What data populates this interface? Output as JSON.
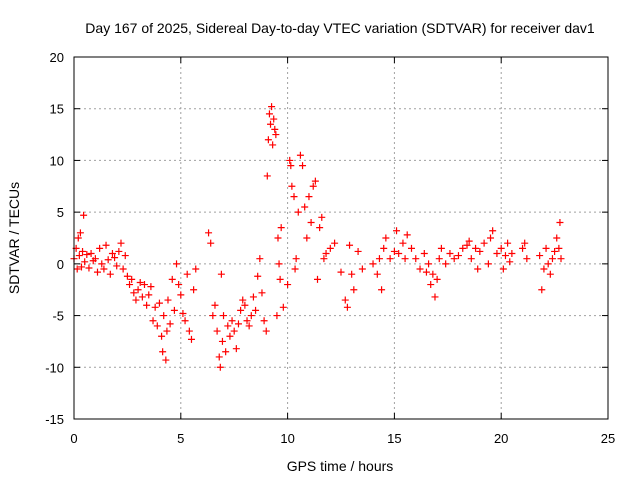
{
  "chart_data": {
    "type": "scatter",
    "title": "Day 167 of 2025, Sidereal Day-to-day VTEC variation (SDTVAR) for receiver dav1",
    "xlabel": "GPS time / hours",
    "ylabel": "SDTVAR / TECUs",
    "xlim": [
      0,
      25
    ],
    "ylim": [
      -15,
      20
    ],
    "xticks": [
      0,
      5,
      10,
      15,
      20,
      25
    ],
    "yticks": [
      -15,
      -10,
      -5,
      0,
      5,
      10,
      15,
      20
    ],
    "grid": true,
    "marker": "+",
    "marker_color": "#ff0000",
    "series": [
      {
        "name": "SDTVAR",
        "points": [
          [
            0.0,
            0.5
          ],
          [
            0.1,
            1.5
          ],
          [
            0.15,
            -0.5
          ],
          [
            0.2,
            2.5
          ],
          [
            0.25,
            0.8
          ],
          [
            0.3,
            3.0
          ],
          [
            0.35,
            -0.3
          ],
          [
            0.4,
            1.2
          ],
          [
            0.45,
            4.7
          ],
          [
            0.5,
            0.2
          ],
          [
            0.6,
            0.9
          ],
          [
            0.7,
            -0.4
          ],
          [
            0.8,
            1.0
          ],
          [
            0.9,
            0.3
          ],
          [
            1.0,
            0.5
          ],
          [
            1.1,
            -0.8
          ],
          [
            1.2,
            1.5
          ],
          [
            1.3,
            0.0
          ],
          [
            1.4,
            -0.5
          ],
          [
            1.5,
            1.8
          ],
          [
            1.6,
            0.4
          ],
          [
            1.7,
            -1.0
          ],
          [
            1.8,
            1.0
          ],
          [
            1.9,
            0.6
          ],
          [
            2.0,
            -0.2
          ],
          [
            2.1,
            1.2
          ],
          [
            2.2,
            2.0
          ],
          [
            2.3,
            -0.5
          ],
          [
            2.4,
            0.8
          ],
          [
            2.5,
            -1.2
          ],
          [
            2.6,
            -2.0
          ],
          [
            2.7,
            -1.5
          ],
          [
            2.8,
            -2.8
          ],
          [
            2.9,
            -3.5
          ],
          [
            3.0,
            -2.5
          ],
          [
            3.1,
            -1.8
          ],
          [
            3.2,
            -3.2
          ],
          [
            3.3,
            -2.0
          ],
          [
            3.4,
            -4.0
          ],
          [
            3.5,
            -3.0
          ],
          [
            3.6,
            -2.2
          ],
          [
            3.7,
            -5.5
          ],
          [
            3.8,
            -4.2
          ],
          [
            3.9,
            -6.0
          ],
          [
            4.0,
            -3.8
          ],
          [
            4.1,
            -7.0
          ],
          [
            4.15,
            -8.5
          ],
          [
            4.2,
            -5.0
          ],
          [
            4.3,
            -9.3
          ],
          [
            4.35,
            -6.5
          ],
          [
            4.4,
            -3.5
          ],
          [
            4.5,
            -5.8
          ],
          [
            4.6,
            -1.5
          ],
          [
            4.7,
            -4.5
          ],
          [
            4.8,
            0.0
          ],
          [
            4.9,
            -2.0
          ],
          [
            5.0,
            -3.0
          ],
          [
            5.1,
            -4.8
          ],
          [
            5.2,
            -5.5
          ],
          [
            5.3,
            -1.0
          ],
          [
            5.4,
            -6.5
          ],
          [
            5.5,
            -7.3
          ],
          [
            5.6,
            -2.5
          ],
          [
            5.7,
            -0.5
          ],
          [
            6.3,
            3.0
          ],
          [
            6.4,
            2.0
          ],
          [
            6.5,
            -5.0
          ],
          [
            6.6,
            -4.0
          ],
          [
            6.7,
            -6.5
          ],
          [
            6.8,
            -9.0
          ],
          [
            6.85,
            -10.0
          ],
          [
            6.9,
            -1.0
          ],
          [
            6.95,
            -7.5
          ],
          [
            7.0,
            -5.0
          ],
          [
            7.1,
            -8.5
          ],
          [
            7.2,
            -6.0
          ],
          [
            7.3,
            -7.0
          ],
          [
            7.4,
            -5.5
          ],
          [
            7.5,
            -6.5
          ],
          [
            7.6,
            -8.2
          ],
          [
            7.7,
            -5.8
          ],
          [
            7.8,
            -4.5
          ],
          [
            7.9,
            -3.5
          ],
          [
            8.0,
            -4.0
          ],
          [
            8.1,
            -5.5
          ],
          [
            8.2,
            -6.0
          ],
          [
            8.3,
            -5.0
          ],
          [
            8.4,
            -3.2
          ],
          [
            8.5,
            -4.5
          ],
          [
            8.6,
            -1.2
          ],
          [
            8.7,
            0.5
          ],
          [
            8.8,
            -2.8
          ],
          [
            8.9,
            -5.5
          ],
          [
            9.0,
            -6.5
          ],
          [
            9.05,
            8.5
          ],
          [
            9.1,
            12.0
          ],
          [
            9.15,
            14.5
          ],
          [
            9.2,
            13.5
          ],
          [
            9.25,
            15.2
          ],
          [
            9.3,
            11.5
          ],
          [
            9.35,
            14.0
          ],
          [
            9.4,
            13.0
          ],
          [
            9.45,
            12.5
          ],
          [
            9.5,
            -5.0
          ],
          [
            9.55,
            2.5
          ],
          [
            9.6,
            0.0
          ],
          [
            9.65,
            -1.5
          ],
          [
            9.7,
            3.5
          ],
          [
            9.8,
            -4.2
          ],
          [
            10.0,
            -2.0
          ],
          [
            10.1,
            10.0
          ],
          [
            10.15,
            9.5
          ],
          [
            10.2,
            7.5
          ],
          [
            10.3,
            6.5
          ],
          [
            10.35,
            -0.5
          ],
          [
            10.4,
            0.5
          ],
          [
            10.5,
            5.0
          ],
          [
            10.6,
            10.5
          ],
          [
            10.7,
            9.5
          ],
          [
            10.8,
            5.5
          ],
          [
            10.9,
            2.5
          ],
          [
            11.0,
            6.5
          ],
          [
            11.1,
            4.0
          ],
          [
            11.2,
            7.5
          ],
          [
            11.3,
            8.0
          ],
          [
            11.4,
            -1.5
          ],
          [
            11.5,
            3.5
          ],
          [
            11.6,
            4.5
          ],
          [
            11.7,
            0.5
          ],
          [
            11.8,
            1.0
          ],
          [
            12.0,
            1.5
          ],
          [
            12.2,
            2.0
          ],
          [
            12.5,
            -0.8
          ],
          [
            12.7,
            -3.5
          ],
          [
            12.8,
            -4.2
          ],
          [
            12.9,
            1.8
          ],
          [
            13.0,
            -1.0
          ],
          [
            13.1,
            -2.5
          ],
          [
            13.3,
            1.2
          ],
          [
            13.5,
            -0.5
          ],
          [
            14.0,
            0.0
          ],
          [
            14.2,
            -1.0
          ],
          [
            14.3,
            0.5
          ],
          [
            14.4,
            -2.5
          ],
          [
            14.5,
            1.5
          ],
          [
            14.6,
            2.5
          ],
          [
            14.8,
            0.5
          ],
          [
            15.0,
            1.2
          ],
          [
            15.1,
            3.2
          ],
          [
            15.2,
            1.0
          ],
          [
            15.4,
            2.0
          ],
          [
            15.5,
            0.5
          ],
          [
            15.6,
            2.8
          ],
          [
            15.8,
            1.5
          ],
          [
            16.0,
            0.5
          ],
          [
            16.2,
            -0.5
          ],
          [
            16.4,
            1.0
          ],
          [
            16.5,
            -0.8
          ],
          [
            16.6,
            0.0
          ],
          [
            16.7,
            -2.0
          ],
          [
            16.8,
            -1.0
          ],
          [
            16.9,
            -3.2
          ],
          [
            17.0,
            -1.5
          ],
          [
            17.1,
            0.5
          ],
          [
            17.2,
            1.5
          ],
          [
            17.4,
            0.0
          ],
          [
            17.6,
            1.0
          ],
          [
            17.8,
            0.5
          ],
          [
            18.0,
            0.8
          ],
          [
            18.2,
            1.5
          ],
          [
            18.4,
            1.8
          ],
          [
            18.5,
            2.2
          ],
          [
            18.6,
            0.5
          ],
          [
            18.8,
            1.5
          ],
          [
            18.9,
            -0.5
          ],
          [
            19.0,
            1.2
          ],
          [
            19.2,
            2.0
          ],
          [
            19.4,
            0.0
          ],
          [
            19.5,
            2.5
          ],
          [
            19.6,
            3.2
          ],
          [
            19.8,
            1.0
          ],
          [
            20.0,
            1.5
          ],
          [
            20.1,
            -0.5
          ],
          [
            20.2,
            0.8
          ],
          [
            20.3,
            2.0
          ],
          [
            20.4,
            0.2
          ],
          [
            20.5,
            1.0
          ],
          [
            21.0,
            1.5
          ],
          [
            21.1,
            2.0
          ],
          [
            21.2,
            0.5
          ],
          [
            21.8,
            0.8
          ],
          [
            21.9,
            -2.5
          ],
          [
            22.0,
            -0.5
          ],
          [
            22.1,
            1.5
          ],
          [
            22.2,
            0.0
          ],
          [
            22.3,
            -1.0
          ],
          [
            22.4,
            0.5
          ],
          [
            22.5,
            1.2
          ],
          [
            22.6,
            2.5
          ],
          [
            22.7,
            1.5
          ],
          [
            22.75,
            4.0
          ],
          [
            22.8,
            0.5
          ]
        ]
      }
    ]
  }
}
